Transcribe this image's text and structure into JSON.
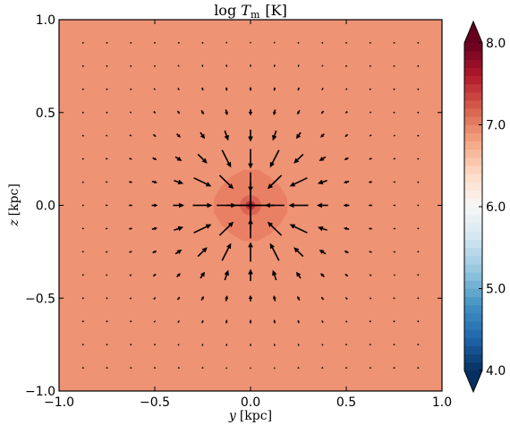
{
  "chart_data": {
    "type": "heatmap",
    "title": "log T_m [K]",
    "title_main": "log ",
    "title_var": "T",
    "title_sub": "m",
    "title_unit": "[K]",
    "xlabel": "y [kpc]",
    "xlabel_var": "y",
    "xlabel_unit": "[kpc]",
    "ylabel": "z [kpc]",
    "ylabel_var": "z",
    "ylabel_unit": "[kpc]",
    "xlim": [
      -1.0,
      1.0
    ],
    "ylim": [
      -1.0,
      1.0
    ],
    "x_ticks": [
      -1.0,
      -0.5,
      0.0,
      0.5,
      1.0
    ],
    "x_tick_labels": [
      "−1.0",
      "−0.5",
      "0.0",
      "0.5",
      "1.0"
    ],
    "y_ticks": [
      -1.0,
      -0.5,
      0.0,
      0.5,
      1.0
    ],
    "y_tick_labels": [
      "−1.0",
      "−0.5",
      "0.0",
      "0.5",
      "1.0"
    ],
    "background_value": 6.85,
    "background_color": "#ee9374",
    "contours": [
      {
        "value": 7.0,
        "radius": 0.19,
        "color": "#e98064"
      },
      {
        "value": 7.3,
        "radius": 0.055,
        "color": "#dd6351"
      },
      {
        "value": 7.6,
        "radius": 0.025,
        "color": "#be3137"
      },
      {
        "value": 8.0,
        "radius": 0.012,
        "color": "#7a0a21"
      }
    ],
    "center": [
      0.0,
      0.0
    ],
    "quiver": {
      "grid_x": [
        -0.875,
        -0.75,
        -0.625,
        -0.5,
        -0.375,
        -0.25,
        -0.125,
        0.0,
        0.125,
        0.25,
        0.375,
        0.5,
        0.625,
        0.75,
        0.875
      ],
      "grid_y": [
        -0.875,
        -0.75,
        -0.625,
        -0.5,
        -0.375,
        -0.25,
        -0.125,
        0.0,
        0.125,
        0.25,
        0.375,
        0.5,
        0.625,
        0.75,
        0.875
      ],
      "direction": "inflow toward center",
      "center_cross_halfwidth": 0.125
    },
    "colorbar": {
      "vmin": 4.0,
      "vmax": 8.0,
      "ticks": [
        4.0,
        5.0,
        6.0,
        7.0,
        8.0
      ],
      "tick_labels": [
        "4.0",
        "5.0",
        "6.0",
        "7.0",
        "8.0"
      ],
      "cmap": "RdBu_r",
      "levels": 40,
      "extend": "both"
    },
    "grid": false
  }
}
